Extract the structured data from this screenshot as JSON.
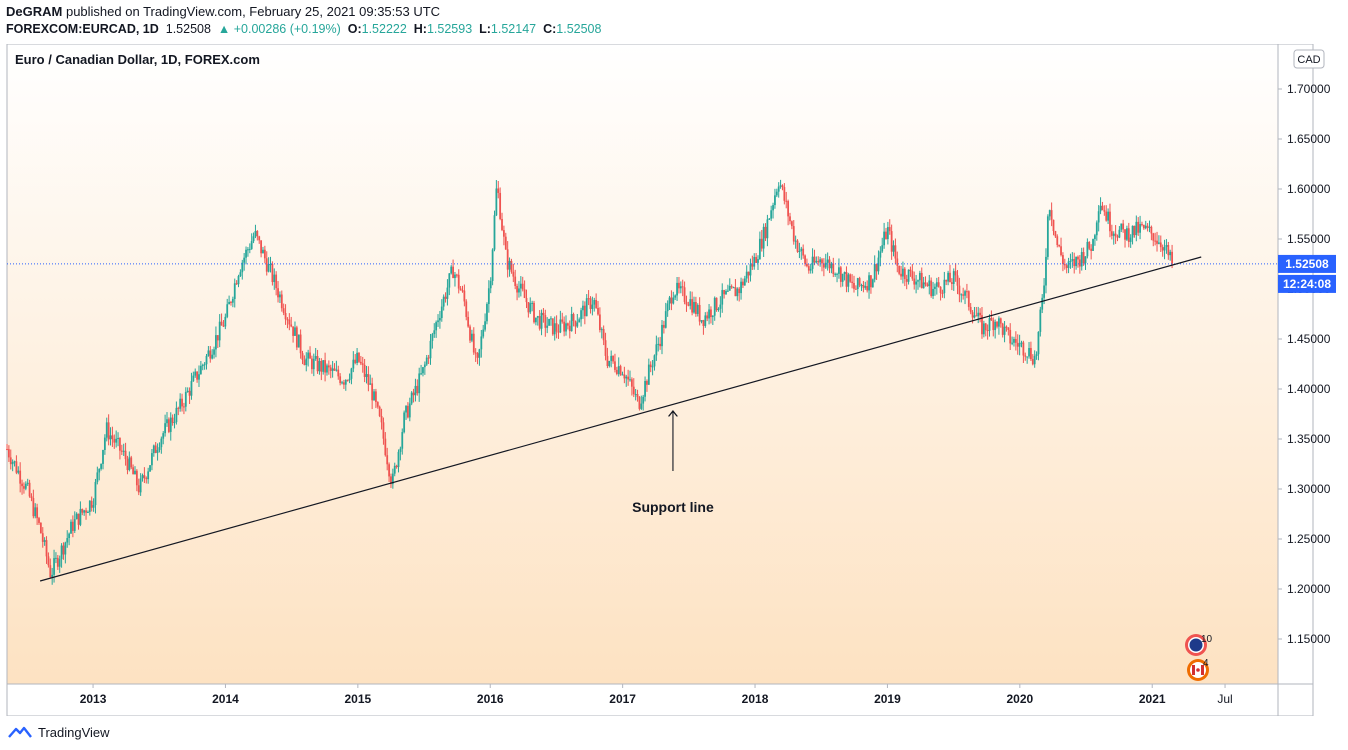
{
  "header": {
    "author": "DeGRAM",
    "published": "published on TradingView.com, February 25, 2021 09:35:53 UTC",
    "symbol": "FOREXCOM:EURCAD, 1D",
    "last": "1.52508",
    "change_arrow": "▲",
    "change": "+0.00286 (+0.19%)",
    "o_label": "O:",
    "o_value": "1.52222",
    "h_label": "H:",
    "h_value": "1.52593",
    "l_label": "L:",
    "l_value": "1.52147",
    "c_label": "C:",
    "c_value": "1.52508"
  },
  "chart_data": {
    "type": "candlestick",
    "title": "Euro / Canadian Dollar, 1D, FOREX.com",
    "currency_label": "CAD",
    "ylim": [
      1.105,
      1.745
    ],
    "xlim": [
      2012.35,
      2021.95
    ],
    "y_ticks": [
      {
        "value": 1.7,
        "label": "1.70000"
      },
      {
        "value": 1.65,
        "label": "1.65000"
      },
      {
        "value": 1.6,
        "label": "1.60000"
      },
      {
        "value": 1.55,
        "label": "1.55000"
      },
      {
        "value": 1.5,
        "label": "1.50000"
      },
      {
        "value": 1.45,
        "label": "1.45000"
      },
      {
        "value": 1.4,
        "label": "1.40000"
      },
      {
        "value": 1.35,
        "label": "1.35000"
      },
      {
        "value": 1.3,
        "label": "1.30000"
      },
      {
        "value": 1.25,
        "label": "1.25000"
      },
      {
        "value": 1.2,
        "label": "1.20000"
      },
      {
        "value": 1.15,
        "label": "1.15000"
      }
    ],
    "x_ticks": [
      {
        "value": 2013.0,
        "label": "2013"
      },
      {
        "value": 2014.0,
        "label": "2014"
      },
      {
        "value": 2015.0,
        "label": "2015"
      },
      {
        "value": 2016.0,
        "label": "2016"
      },
      {
        "value": 2017.0,
        "label": "2017"
      },
      {
        "value": 2018.0,
        "label": "2018"
      },
      {
        "value": 2019.0,
        "label": "2019"
      },
      {
        "value": 2020.0,
        "label": "2020"
      },
      {
        "value": 2021.0,
        "label": "2021"
      },
      {
        "value": 2021.55,
        "label": "Jul"
      }
    ],
    "price_path": [
      [
        2012.35,
        1.34
      ],
      [
        2012.5,
        1.3
      ],
      [
        2012.6,
        1.26
      ],
      [
        2012.68,
        1.215
      ],
      [
        2012.85,
        1.265
      ],
      [
        2013.0,
        1.29
      ],
      [
        2013.1,
        1.36
      ],
      [
        2013.25,
        1.33
      ],
      [
        2013.35,
        1.3
      ],
      [
        2013.5,
        1.35
      ],
      [
        2013.65,
        1.38
      ],
      [
        2013.85,
        1.43
      ],
      [
        2014.0,
        1.47
      ],
      [
        2014.1,
        1.52
      ],
      [
        2014.22,
        1.555
      ],
      [
        2014.3,
        1.53
      ],
      [
        2014.45,
        1.48
      ],
      [
        2014.6,
        1.43
      ],
      [
        2014.75,
        1.42
      ],
      [
        2014.9,
        1.41
      ],
      [
        2015.0,
        1.43
      ],
      [
        2015.1,
        1.4
      ],
      [
        2015.18,
        1.36
      ],
      [
        2015.26,
        1.305
      ],
      [
        2015.35,
        1.37
      ],
      [
        2015.5,
        1.42
      ],
      [
        2015.6,
        1.47
      ],
      [
        2015.72,
        1.52
      ],
      [
        2015.8,
        1.49
      ],
      [
        2015.9,
        1.42
      ],
      [
        2016.0,
        1.51
      ],
      [
        2016.05,
        1.605
      ],
      [
        2016.12,
        1.53
      ],
      [
        2016.22,
        1.5
      ],
      [
        2016.35,
        1.47
      ],
      [
        2016.5,
        1.46
      ],
      [
        2016.65,
        1.47
      ],
      [
        2016.78,
        1.49
      ],
      [
        2016.88,
        1.43
      ],
      [
        2017.0,
        1.42
      ],
      [
        2017.12,
        1.385
      ],
      [
        2017.28,
        1.45
      ],
      [
        2017.38,
        1.5
      ],
      [
        2017.5,
        1.49
      ],
      [
        2017.6,
        1.47
      ],
      [
        2017.75,
        1.49
      ],
      [
        2017.88,
        1.5
      ],
      [
        2018.0,
        1.53
      ],
      [
        2018.08,
        1.56
      ],
      [
        2018.18,
        1.61
      ],
      [
        2018.3,
        1.55
      ],
      [
        2018.4,
        1.52
      ],
      [
        2018.5,
        1.53
      ],
      [
        2018.62,
        1.52
      ],
      [
        2018.75,
        1.5
      ],
      [
        2018.88,
        1.51
      ],
      [
        2019.0,
        1.56
      ],
      [
        2019.08,
        1.52
      ],
      [
        2019.22,
        1.51
      ],
      [
        2019.35,
        1.5
      ],
      [
        2019.5,
        1.51
      ],
      [
        2019.6,
        1.49
      ],
      [
        2019.72,
        1.46
      ],
      [
        2019.82,
        1.47
      ],
      [
        2019.92,
        1.45
      ],
      [
        2020.05,
        1.44
      ],
      [
        2020.12,
        1.43
      ],
      [
        2020.18,
        1.5
      ],
      [
        2020.22,
        1.59
      ],
      [
        2020.28,
        1.545
      ],
      [
        2020.35,
        1.52
      ],
      [
        2020.45,
        1.53
      ],
      [
        2020.55,
        1.545
      ],
      [
        2020.6,
        1.59
      ],
      [
        2020.7,
        1.56
      ],
      [
        2020.8,
        1.555
      ],
      [
        2020.92,
        1.56
      ],
      [
        2021.0,
        1.555
      ],
      [
        2021.08,
        1.545
      ],
      [
        2021.15,
        1.525
      ]
    ],
    "support_line": {
      "from": [
        2012.6,
        1.208
      ],
      "to": [
        2021.37,
        1.532
      ]
    },
    "annotation": {
      "text": "Support line",
      "arrow_tip": [
        2017.38,
        1.378
      ],
      "arrow_tail": [
        2017.38,
        1.318
      ]
    },
    "last_price": {
      "value": 1.52508,
      "label": "1.52508",
      "countdown": "12:24:08"
    },
    "events": [
      {
        "flag": "EU",
        "count": "10"
      },
      {
        "flag": "CA",
        "count": "4"
      }
    ],
    "colors": {
      "up": "#26a69a",
      "down": "#ef5350",
      "bg_top": "#ffffff",
      "bg_bottom": "#fde2c2",
      "price_tag": "#2962ff",
      "line": "#131722"
    }
  },
  "footer": {
    "brand": "TradingView"
  }
}
